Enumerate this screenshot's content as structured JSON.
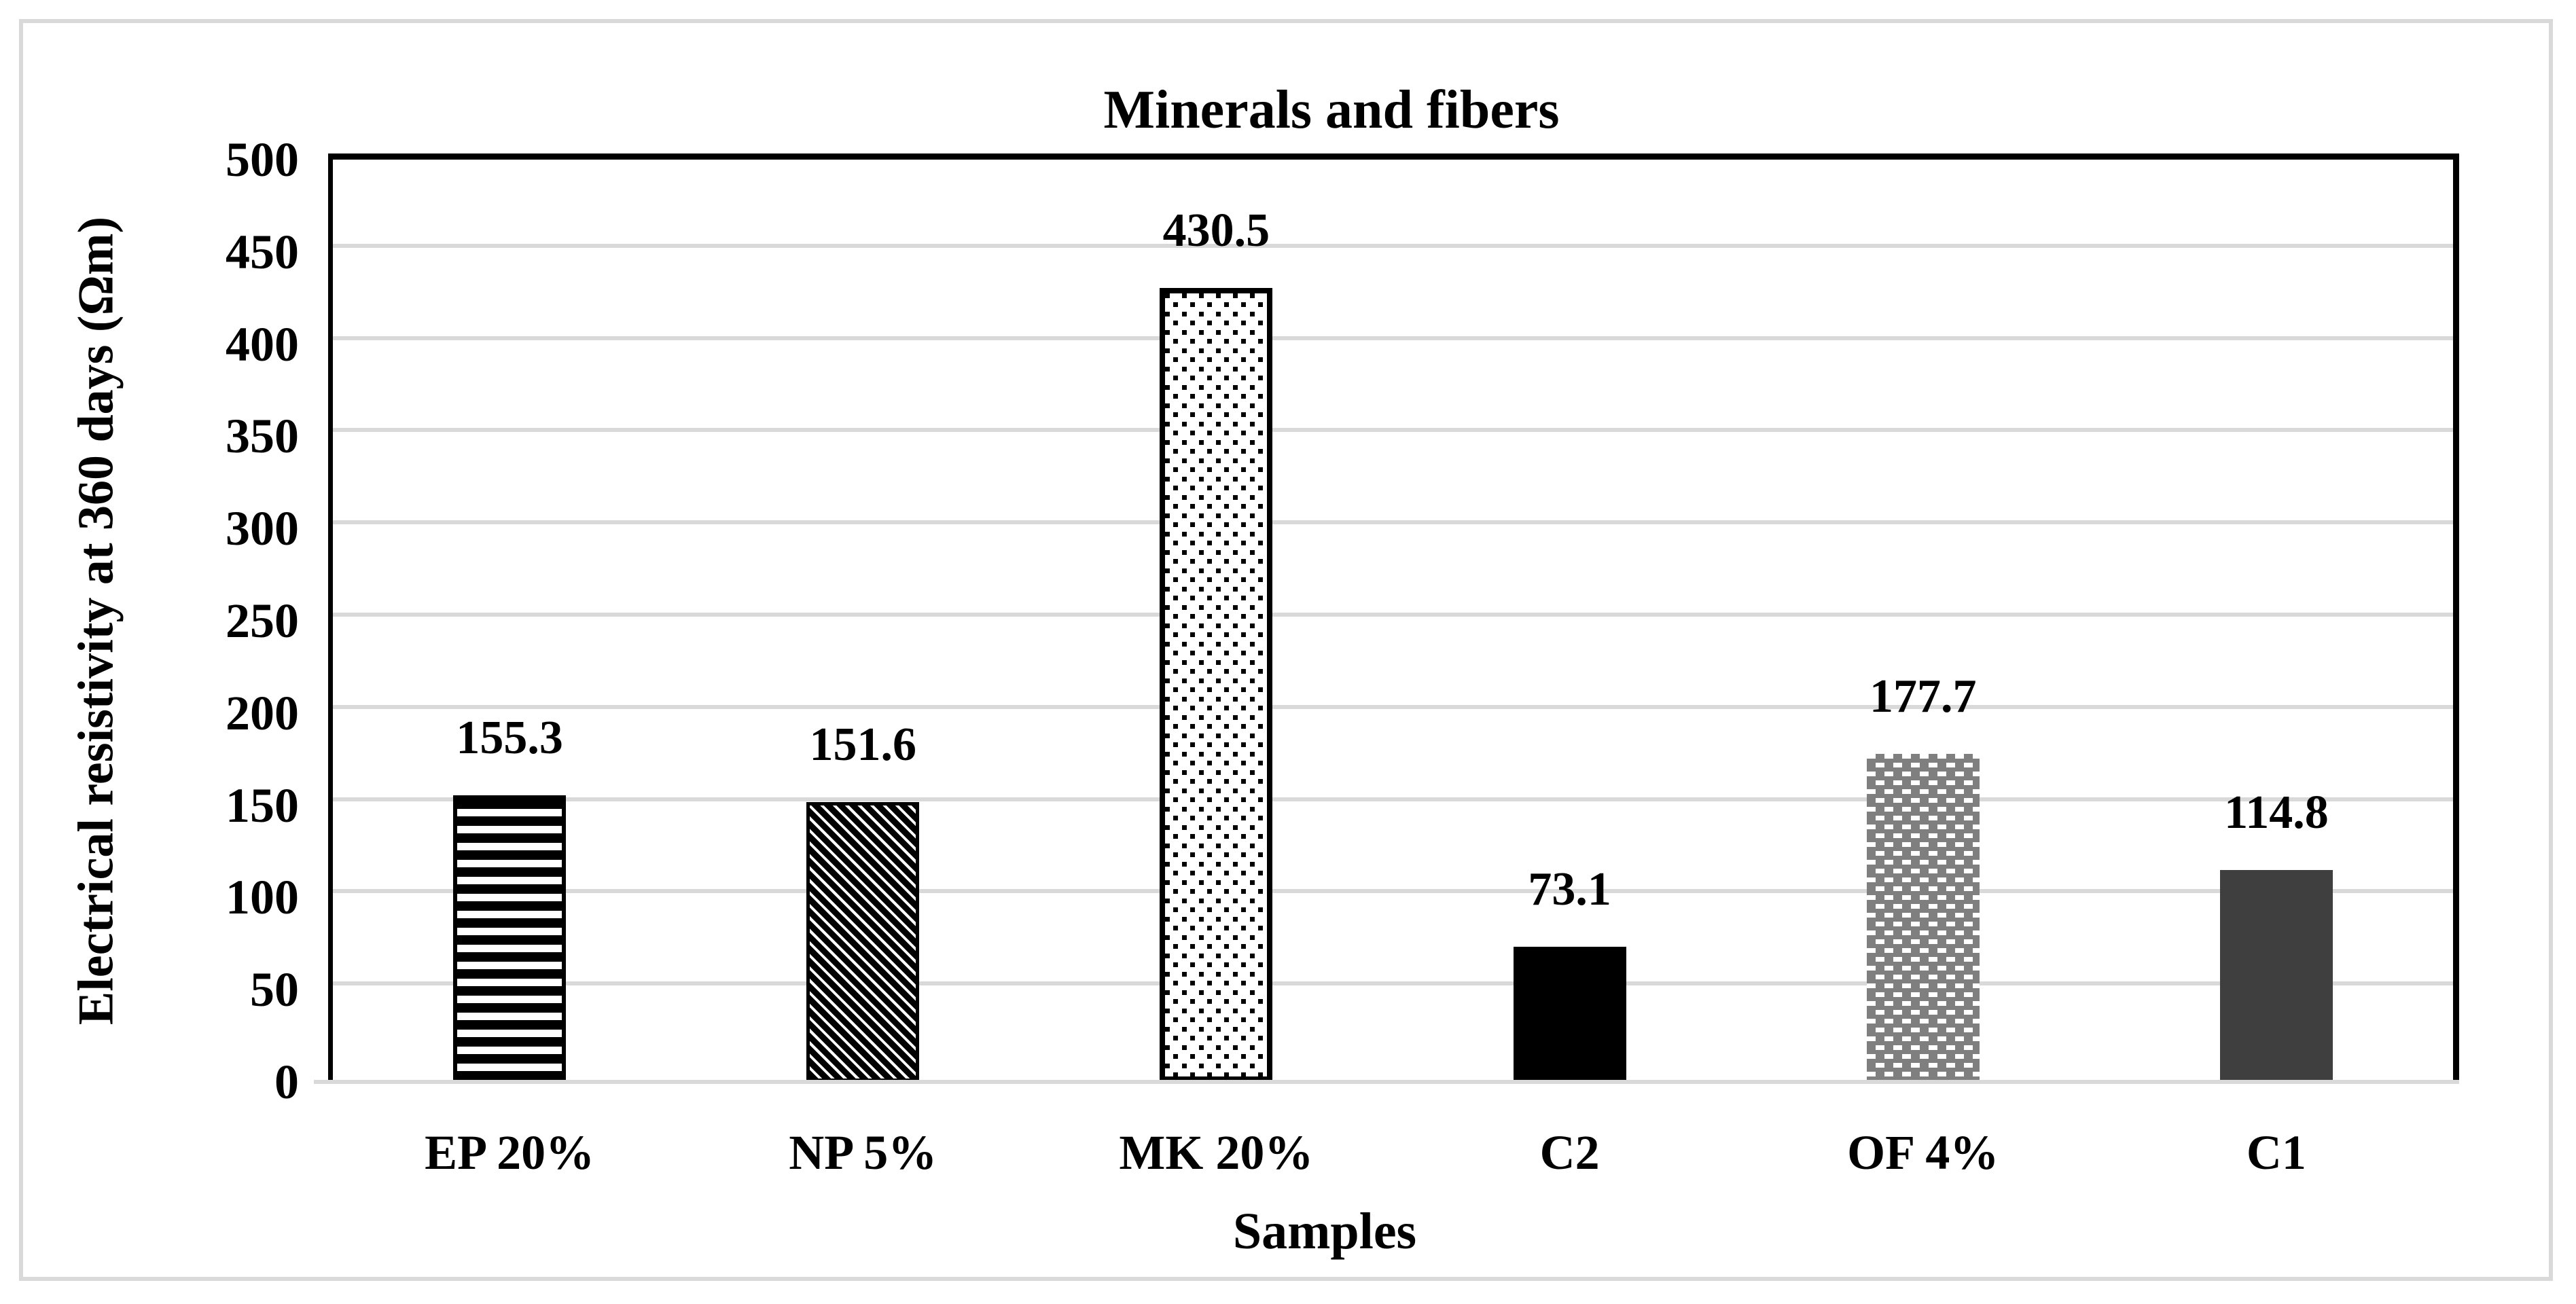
{
  "figure": {
    "background": "#ffffff",
    "border_color": "#d9d9d9"
  },
  "chart_data": {
    "type": "bar",
    "title": "Minerals and fibers",
    "xlabel": "Samples",
    "ylabel": "Electrical resistivity at 360 days (Ωm)",
    "categories": [
      "EP 20%",
      "NP 5%",
      "MK 20%",
      "C2",
      "OF 4%",
      "C1"
    ],
    "values": [
      155.3,
      151.6,
      430.5,
      73.1,
      177.7,
      114.8
    ],
    "value_labels": [
      "155.3",
      "151.6",
      "430.5",
      "73.1",
      "177.7",
      "114.8"
    ],
    "bar_patterns": [
      "horizontal-stripes",
      "diagonal-stripes",
      "dots",
      "solid-black",
      "checker-grid",
      "solid-dark-gray"
    ],
    "bar_colors": {
      "pattern_ink": "#000000",
      "pattern_background": "#ffffff",
      "solid_black": "#000000",
      "checker_gray": "#7f7f7f",
      "solid_dark_gray": "#3f3f3f"
    },
    "ylim": [
      0,
      500
    ],
    "yticks": [
      0,
      50,
      100,
      150,
      200,
      250,
      300,
      350,
      400,
      450,
      500
    ],
    "ytick_step": 50,
    "grid": "horizontal",
    "gridline_color": "#d9d9d9",
    "axis_line_color": "#000000",
    "legend": null
  }
}
